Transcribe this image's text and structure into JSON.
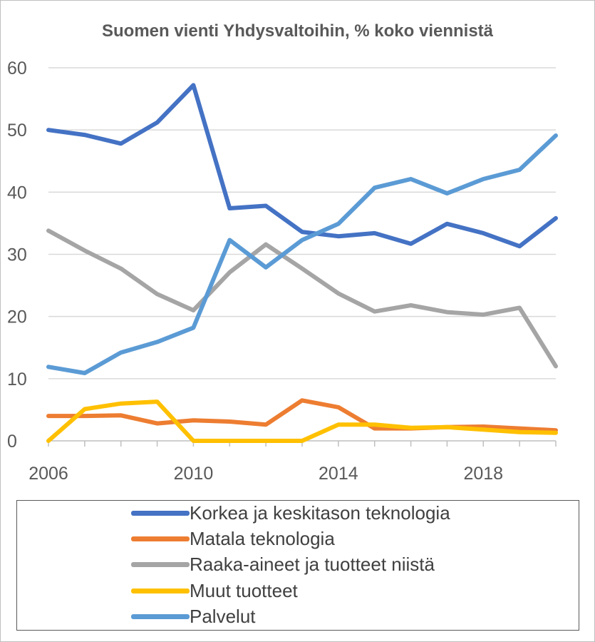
{
  "chart_data": {
    "type": "line",
    "title": "Suomen vienti Yhdysvaltoihin, % koko viennistä",
    "xlabel": "",
    "ylabel": "",
    "x": [
      2006,
      2007,
      2008,
      2009,
      2010,
      2011,
      2012,
      2013,
      2014,
      2015,
      2016,
      2017,
      2018,
      2019,
      2020
    ],
    "xlim": [
      2006,
      2020
    ],
    "ylim": [
      0,
      60
    ],
    "x_ticks": [
      "2006",
      "2010",
      "2014",
      "2018"
    ],
    "x_tick_values": [
      2006,
      2010,
      2014,
      2018
    ],
    "y_ticks": [
      "0",
      "10",
      "20",
      "30",
      "40",
      "50",
      "60"
    ],
    "y_tick_values": [
      0,
      10,
      20,
      30,
      40,
      50,
      60
    ],
    "grid": "horizontal",
    "legend_position": "bottom",
    "series": [
      {
        "name": "Korkea ja keskitason teknologia",
        "color": "#4472C4",
        "values": [
          50.0,
          49.2,
          47.8,
          51.2,
          57.2,
          37.4,
          37.8,
          33.6,
          32.9,
          33.4,
          31.7,
          34.9,
          33.4,
          31.3,
          35.8
        ]
      },
      {
        "name": "Matala teknologia",
        "color": "#ED7D31",
        "values": [
          4.0,
          4.0,
          4.1,
          2.8,
          3.3,
          3.1,
          2.6,
          6.5,
          5.4,
          2.0,
          2.0,
          2.2,
          2.3,
          2.0,
          1.7
        ]
      },
      {
        "name": "Raaka-aineet ja tuotteet niistä",
        "color": "#A5A5A5",
        "values": [
          33.8,
          30.6,
          27.7,
          23.6,
          21.0,
          27.1,
          31.6,
          27.7,
          23.7,
          20.8,
          21.8,
          20.7,
          20.3,
          21.4,
          12.0
        ]
      },
      {
        "name": "Muut tuotteet",
        "color": "#FFC000",
        "values": [
          0.0,
          5.1,
          6.0,
          6.3,
          0.0,
          0.0,
          0.0,
          0.0,
          2.6,
          2.6,
          2.1,
          2.2,
          1.8,
          1.4,
          1.3
        ]
      },
      {
        "name": "Palvelut",
        "color": "#5B9BD5",
        "values": [
          11.9,
          10.9,
          14.2,
          15.9,
          18.2,
          32.3,
          27.9,
          32.3,
          34.9,
          40.7,
          42.1,
          39.8,
          42.1,
          43.6,
          49.1
        ]
      }
    ]
  }
}
